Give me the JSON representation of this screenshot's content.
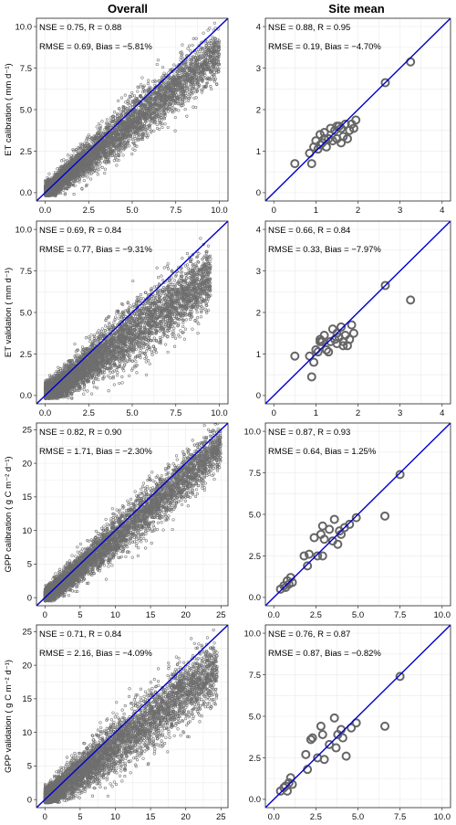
{
  "column_titles": {
    "left": "Overall",
    "right": "Site mean"
  },
  "chart_data": [
    {
      "type": "scatter",
      "panel": "overall-et-calibration",
      "ylabel": "ET calibration ( mm d⁻¹)",
      "xlim": [
        -0.5,
        10.5
      ],
      "ylim": [
        -0.5,
        10.5
      ],
      "xticks": [
        "0.0",
        "2.5",
        "5.0",
        "7.5",
        "10.0"
      ],
      "yticks": [
        "0.0",
        "2.5",
        "5.0",
        "7.5",
        "10.0"
      ],
      "tick_values": [
        0,
        2.5,
        5,
        7.5,
        10
      ],
      "stats": [
        "NSE = 0.75, R = 0.88",
        "RMSE = 0.69, Bias = −5.81%"
      ],
      "one_to_one_line": true,
      "grid": true,
      "cloud": {
        "points": 5000,
        "x_max": 10.0,
        "slope": 0.85,
        "noise": 0.75
      }
    },
    {
      "type": "scatter",
      "panel": "site-et-calibration",
      "ylabel": "",
      "xlim": [
        -0.2,
        4.2
      ],
      "ylim": [
        -0.2,
        4.2
      ],
      "xticks": [
        "0",
        "1",
        "2",
        "3",
        "4"
      ],
      "yticks": [
        "0",
        "1",
        "2",
        "3",
        "4"
      ],
      "tick_values": [
        0,
        1,
        2,
        3,
        4
      ],
      "stats": [
        "NSE = 0.88, R = 0.95",
        "RMSE = 0.19, Bias = −4.70%"
      ],
      "one_to_one_line": true,
      "grid": true,
      "x": [
        0.5,
        0.85,
        0.9,
        0.95,
        1.0,
        1.05,
        1.1,
        1.1,
        1.15,
        1.2,
        1.2,
        1.25,
        1.3,
        1.35,
        1.4,
        1.45,
        1.5,
        1.5,
        1.55,
        1.6,
        1.6,
        1.65,
        1.7,
        1.75,
        1.8,
        1.85,
        1.9,
        1.95,
        2.65,
        3.25
      ],
      "y": [
        0.7,
        0.95,
        0.7,
        1.1,
        1.25,
        1.05,
        1.4,
        1.15,
        1.2,
        1.3,
        1.45,
        1.1,
        1.3,
        1.55,
        1.25,
        1.5,
        1.3,
        1.6,
        1.6,
        1.55,
        1.2,
        1.35,
        1.65,
        1.3,
        1.5,
        1.65,
        1.55,
        1.75,
        2.65,
        3.15
      ]
    },
    {
      "type": "scatter",
      "panel": "overall-et-validation",
      "ylabel": "ET validation ( mm d⁻¹)",
      "xlim": [
        -0.5,
        10.5
      ],
      "ylim": [
        -0.5,
        10.5
      ],
      "xticks": [
        "0.0",
        "2.5",
        "5.0",
        "7.5",
        "10.0"
      ],
      "yticks": [
        "0.0",
        "2.5",
        "5.0",
        "7.5",
        "10.0"
      ],
      "tick_values": [
        0,
        2.5,
        5,
        7.5,
        10
      ],
      "stats": [
        "NSE = 0.69, R = 0.84",
        "RMSE = 0.77, Bias = −9.31%"
      ],
      "one_to_one_line": true,
      "grid": true,
      "cloud": {
        "points": 5000,
        "x_max": 9.5,
        "slope": 0.75,
        "noise": 0.9
      }
    },
    {
      "type": "scatter",
      "panel": "site-et-validation",
      "ylabel": "",
      "xlim": [
        -0.2,
        4.2
      ],
      "ylim": [
        -0.2,
        4.2
      ],
      "xticks": [
        "0",
        "1",
        "2",
        "3",
        "4"
      ],
      "yticks": [
        "0",
        "1",
        "2",
        "3",
        "4"
      ],
      "tick_values": [
        0,
        1,
        2,
        3,
        4
      ],
      "stats": [
        "NSE = 0.66, R = 0.84",
        "RMSE = 0.33, Bias = −7.97%"
      ],
      "one_to_one_line": true,
      "grid": true,
      "x": [
        0.5,
        0.85,
        0.9,
        0.95,
        1.0,
        1.05,
        1.1,
        1.1,
        1.15,
        1.2,
        1.25,
        1.3,
        1.35,
        1.4,
        1.45,
        1.5,
        1.5,
        1.55,
        1.6,
        1.65,
        1.65,
        1.7,
        1.75,
        1.8,
        1.85,
        1.9,
        2.65,
        3.25
      ],
      "y": [
        0.95,
        0.95,
        0.45,
        0.8,
        1.1,
        1.05,
        1.35,
        1.3,
        1.3,
        1.45,
        1.1,
        1.05,
        1.3,
        1.6,
        1.35,
        1.25,
        1.5,
        1.4,
        1.65,
        1.2,
        1.3,
        1.45,
        1.2,
        1.35,
        1.7,
        1.5,
        2.65,
        2.3
      ]
    },
    {
      "type": "scatter",
      "panel": "overall-gpp-calibration",
      "ylabel": "GPP calibration ( g C m⁻² d⁻¹)",
      "xlim": [
        -1.2,
        26
      ],
      "ylim": [
        -1.2,
        26
      ],
      "xticks": [
        "0",
        "5",
        "10",
        "15",
        "20",
        "25"
      ],
      "yticks": [
        "0",
        "5",
        "10",
        "15",
        "20",
        "25"
      ],
      "tick_values": [
        0,
        5,
        10,
        15,
        20,
        25
      ],
      "stats": [
        "NSE = 0.82, R = 0.90",
        "RMSE = 1.71, Bias = −2.30%"
      ],
      "one_to_one_line": true,
      "grid": true,
      "cloud": {
        "points": 5000,
        "x_max": 25,
        "slope": 0.9,
        "noise": 1.7
      }
    },
    {
      "type": "scatter",
      "panel": "site-gpp-calibration",
      "ylabel": "",
      "xlim": [
        -0.5,
        10.5
      ],
      "ylim": [
        -0.5,
        10.5
      ],
      "xticks": [
        "0.0",
        "2.5",
        "5.0",
        "7.5",
        "10.0"
      ],
      "yticks": [
        "0.0",
        "2.5",
        "5.0",
        "7.5",
        "10.0"
      ],
      "tick_values": [
        0,
        2.5,
        5,
        7.5,
        10
      ],
      "stats": [
        "NSE = 0.87, R = 0.93",
        "RMSE = 0.64, Bias = 1.25%"
      ],
      "one_to_one_line": true,
      "grid": true,
      "x": [
        0.4,
        0.6,
        0.7,
        0.8,
        0.9,
        1.0,
        1.1,
        1.8,
        2.0,
        2.1,
        2.4,
        2.6,
        2.8,
        2.9,
        2.9,
        3.0,
        3.3,
        3.5,
        3.6,
        3.8,
        3.9,
        4.0,
        4.2,
        4.5,
        4.9,
        6.6,
        7.5
      ],
      "y": [
        0.5,
        0.7,
        0.6,
        1.0,
        0.8,
        1.2,
        0.9,
        2.5,
        1.9,
        2.6,
        3.6,
        2.5,
        3.8,
        4.3,
        2.5,
        3.5,
        4.1,
        3.4,
        4.7,
        3.2,
        4.0,
        3.8,
        4.2,
        4.4,
        4.8,
        4.9,
        7.4
      ]
    },
    {
      "type": "scatter",
      "panel": "overall-gpp-validation",
      "ylabel": "GPP validation ( g C m⁻² d⁻¹)",
      "xlim": [
        -1.2,
        26
      ],
      "ylim": [
        -1.2,
        26
      ],
      "xticks": [
        "0",
        "5",
        "10",
        "15",
        "20",
        "25"
      ],
      "yticks": [
        "0",
        "5",
        "10",
        "15",
        "20",
        "25"
      ],
      "tick_values": [
        0,
        5,
        10,
        15,
        20,
        25
      ],
      "stats": [
        "NSE = 0.71, R = 0.84",
        "RMSE = 2.16, Bias = −4.09%"
      ],
      "one_to_one_line": true,
      "grid": true,
      "cloud": {
        "points": 5000,
        "x_max": 24.5,
        "slope": 0.8,
        "noise": 2.2
      }
    },
    {
      "type": "scatter",
      "panel": "site-gpp-validation",
      "ylabel": "",
      "xlim": [
        -0.5,
        10.5
      ],
      "ylim": [
        -0.5,
        10.5
      ],
      "xticks": [
        "0.0",
        "2.5",
        "5.0",
        "7.5",
        "10.0"
      ],
      "yticks": [
        "0.0",
        "2.5",
        "5.0",
        "7.5",
        "10.0"
      ],
      "tick_values": [
        0,
        2.5,
        5,
        7.5,
        10
      ],
      "stats": [
        "NSE = 0.76, R = 0.87",
        "RMSE = 0.87, Bias = −0.82%"
      ],
      "one_to_one_line": true,
      "grid": true,
      "x": [
        0.4,
        0.6,
        0.7,
        0.8,
        0.9,
        1.0,
        1.1,
        1.9,
        2.0,
        2.2,
        2.3,
        2.6,
        2.8,
        2.9,
        3.0,
        3.3,
        3.6,
        3.7,
        3.8,
        4.0,
        4.1,
        4.3,
        4.6,
        4.9,
        6.6,
        7.5
      ],
      "y": [
        0.5,
        0.7,
        0.8,
        0.5,
        1.0,
        1.3,
        0.9,
        2.7,
        1.8,
        3.6,
        3.7,
        2.5,
        4.4,
        3.9,
        2.4,
        3.3,
        4.9,
        3.1,
        3.9,
        4.2,
        3.7,
        2.6,
        4.3,
        4.6,
        4.4,
        7.4
      ]
    }
  ]
}
